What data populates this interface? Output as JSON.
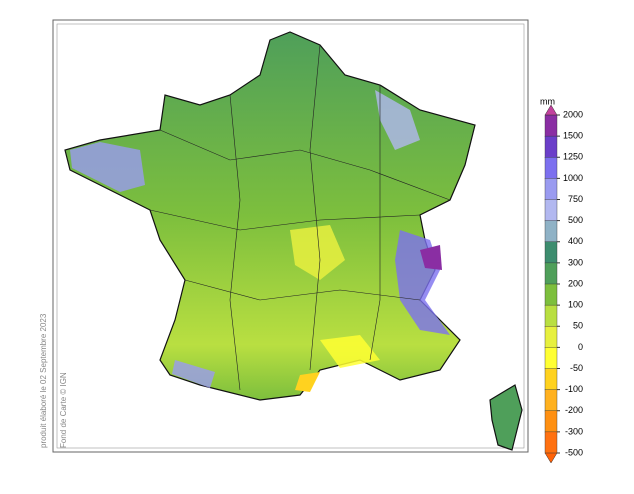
{
  "colorbar": {
    "unit": "mm",
    "levels": [
      2000,
      1500,
      1250,
      1000,
      750,
      500,
      400,
      300,
      200,
      100,
      50,
      0,
      -50,
      -100,
      -200,
      -300,
      -500
    ],
    "colors": [
      "#8a2ea3",
      "#6b3fc9",
      "#7c70ef",
      "#9a9bf0",
      "#b2b8f0",
      "#8fb2c6",
      "#3d8d6f",
      "#4f9f5a",
      "#7dbf3d",
      "#b9df41",
      "#e7f03f",
      "#ffff33",
      "#ffd21f",
      "#ffb11f",
      "#ff9012",
      "#ff7111"
    ],
    "extend_colors": [
      "#c2419d",
      "#ff6208"
    ]
  },
  "credits": {
    "date": "produit élaboré le 02 Septembre 2023",
    "source": "Fond de Carte © IGN"
  }
}
